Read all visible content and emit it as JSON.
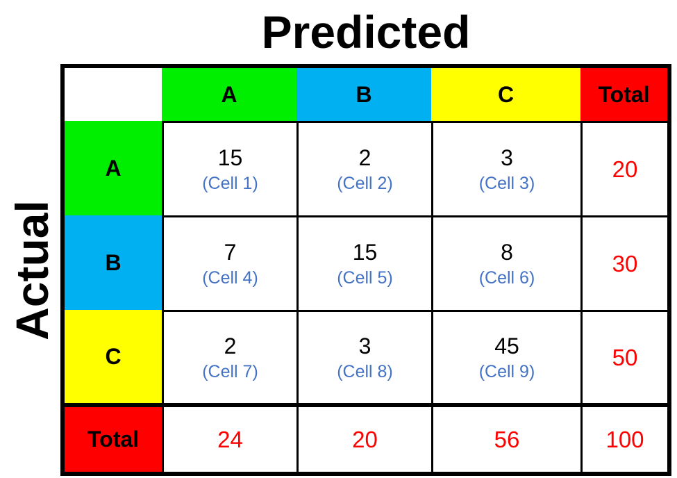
{
  "titles": {
    "predicted": "Predicted",
    "actual": "Actual"
  },
  "headers": {
    "columns": [
      "A",
      "B",
      "C"
    ],
    "rows": [
      "A",
      "B",
      "C"
    ],
    "total": "Total"
  },
  "colors": {
    "class_a": "#00ee00",
    "class_b": "#00b0f0",
    "class_c": "#ffff00",
    "total": "#ff0000",
    "cell_label": "#4472c4"
  },
  "cells": [
    [
      {
        "value": "15",
        "label": "(Cell 1)"
      },
      {
        "value": "2",
        "label": "(Cell 2)"
      },
      {
        "value": "3",
        "label": "(Cell 3)"
      }
    ],
    [
      {
        "value": "7",
        "label": "(Cell 4)"
      },
      {
        "value": "15",
        "label": "(Cell 5)"
      },
      {
        "value": "8",
        "label": "(Cell 6)"
      }
    ],
    [
      {
        "value": "2",
        "label": "(Cell 7)"
      },
      {
        "value": "3",
        "label": "(Cell 8)"
      },
      {
        "value": "45",
        "label": "(Cell 9)"
      }
    ]
  ],
  "row_totals": [
    "20",
    "30",
    "50"
  ],
  "column_totals": [
    "24",
    "20",
    "56"
  ],
  "grand_total": "100"
}
